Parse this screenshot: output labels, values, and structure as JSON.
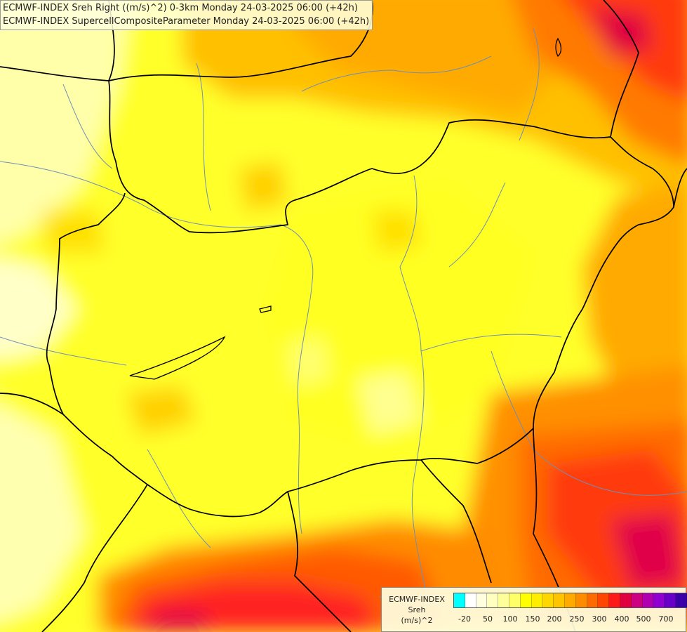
{
  "titles": [
    "ECMWF-INDEX Sreh Right ((m/s)^2) 0-3km Monday 24-03-2025 06:00 (+42h)",
    "ECMWF-INDEX SupercellCompositeParameter Monday 24-03-2025 06:00 (+42h)"
  ],
  "legend": {
    "title_lines": [
      "ECMWF-INDEX",
      "Sreh",
      "(m/s)^2"
    ],
    "colors": [
      "#00ffff",
      "#ffffff",
      "#ffffe0",
      "#ffffc0",
      "#ffff99",
      "#ffff66",
      "#ffff00",
      "#ffee00",
      "#ffd700",
      "#ffc400",
      "#ffaa00",
      "#ff8c00",
      "#ff6a00",
      "#ff4500",
      "#ff1a1a",
      "#e00040",
      "#cc0080",
      "#b000b0",
      "#9000d0",
      "#6a00c8",
      "#3c00a8",
      "#1a0080",
      "#000060"
    ],
    "tick_labels": [
      "-20",
      "50",
      "100",
      "150",
      "200",
      "250",
      "300",
      "400",
      "500",
      "700"
    ]
  },
  "colors": {
    "background": "#ffff33",
    "border_line": "#000000",
    "river_line": "#6f8fb5"
  }
}
